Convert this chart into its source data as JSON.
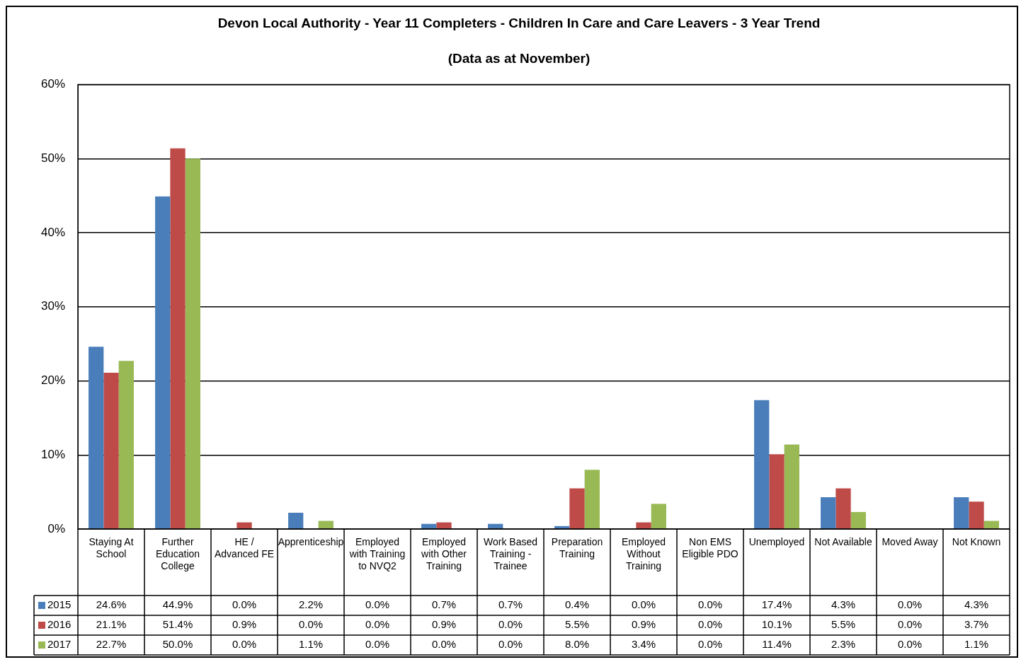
{
  "chart_data": {
    "type": "bar",
    "title": "Devon Local Authority - Year 11 Completers - Children In Care and Care Leavers - 3 Year Trend",
    "subtitle": "(Data as at November)",
    "categories": [
      "Staying At School",
      "Further Education College",
      "HE / Advanced FE",
      "Apprenticeship",
      "Employed with Training to NVQ2",
      "Employed with Other Training",
      "Work Based Training - Trainee",
      "Preparation Training",
      "Employed Without Training",
      "Non EMS Eligible PDO",
      "Unemployed",
      "Not Available",
      "Moved Away",
      "Not Known"
    ],
    "series": [
      {
        "name": "2015",
        "color": "#4a7ebb",
        "values": [
          24.6,
          44.9,
          0.0,
          2.2,
          0.0,
          0.7,
          0.7,
          0.4,
          0.0,
          0.0,
          17.4,
          4.3,
          0.0,
          4.3
        ],
        "value_labels": [
          "24.6%",
          "44.9%",
          "0.0%",
          "2.2%",
          "0.0%",
          "0.7%",
          "0.7%",
          "0.4%",
          "0.0%",
          "0.0%",
          "17.4%",
          "4.3%",
          "0.0%",
          "4.3%"
        ]
      },
      {
        "name": "2016",
        "color": "#be4b48",
        "values": [
          21.1,
          51.4,
          0.9,
          0.0,
          0.0,
          0.9,
          0.0,
          5.5,
          0.9,
          0.0,
          10.1,
          5.5,
          0.0,
          3.7
        ],
        "value_labels": [
          "21.1%",
          "51.4%",
          "0.9%",
          "0.0%",
          "0.0%",
          "0.9%",
          "0.0%",
          "5.5%",
          "0.9%",
          "0.0%",
          "10.1%",
          "5.5%",
          "0.0%",
          "3.7%"
        ]
      },
      {
        "name": "2017",
        "color": "#98b954",
        "values": [
          22.7,
          50.0,
          0.0,
          1.1,
          0.0,
          0.0,
          0.0,
          8.0,
          3.4,
          0.0,
          11.4,
          2.3,
          0.0,
          1.1
        ],
        "value_labels": [
          "22.7%",
          "50.0%",
          "0.0%",
          "1.1%",
          "0.0%",
          "0.0%",
          "0.0%",
          "8.0%",
          "3.4%",
          "0.0%",
          "11.4%",
          "2.3%",
          "0.0%",
          "1.1%"
        ]
      }
    ],
    "ylim": [
      0,
      60
    ],
    "yticks": [
      {
        "value": 0,
        "label": "0%"
      },
      {
        "value": 10,
        "label": "10%"
      },
      {
        "value": 20,
        "label": "20%"
      },
      {
        "value": 30,
        "label": "30%"
      },
      {
        "value": 40,
        "label": "40%"
      },
      {
        "value": 50,
        "label": "50%"
      },
      {
        "value": 60,
        "label": "60%"
      }
    ],
    "grid": "y",
    "legend": "bottom left"
  }
}
